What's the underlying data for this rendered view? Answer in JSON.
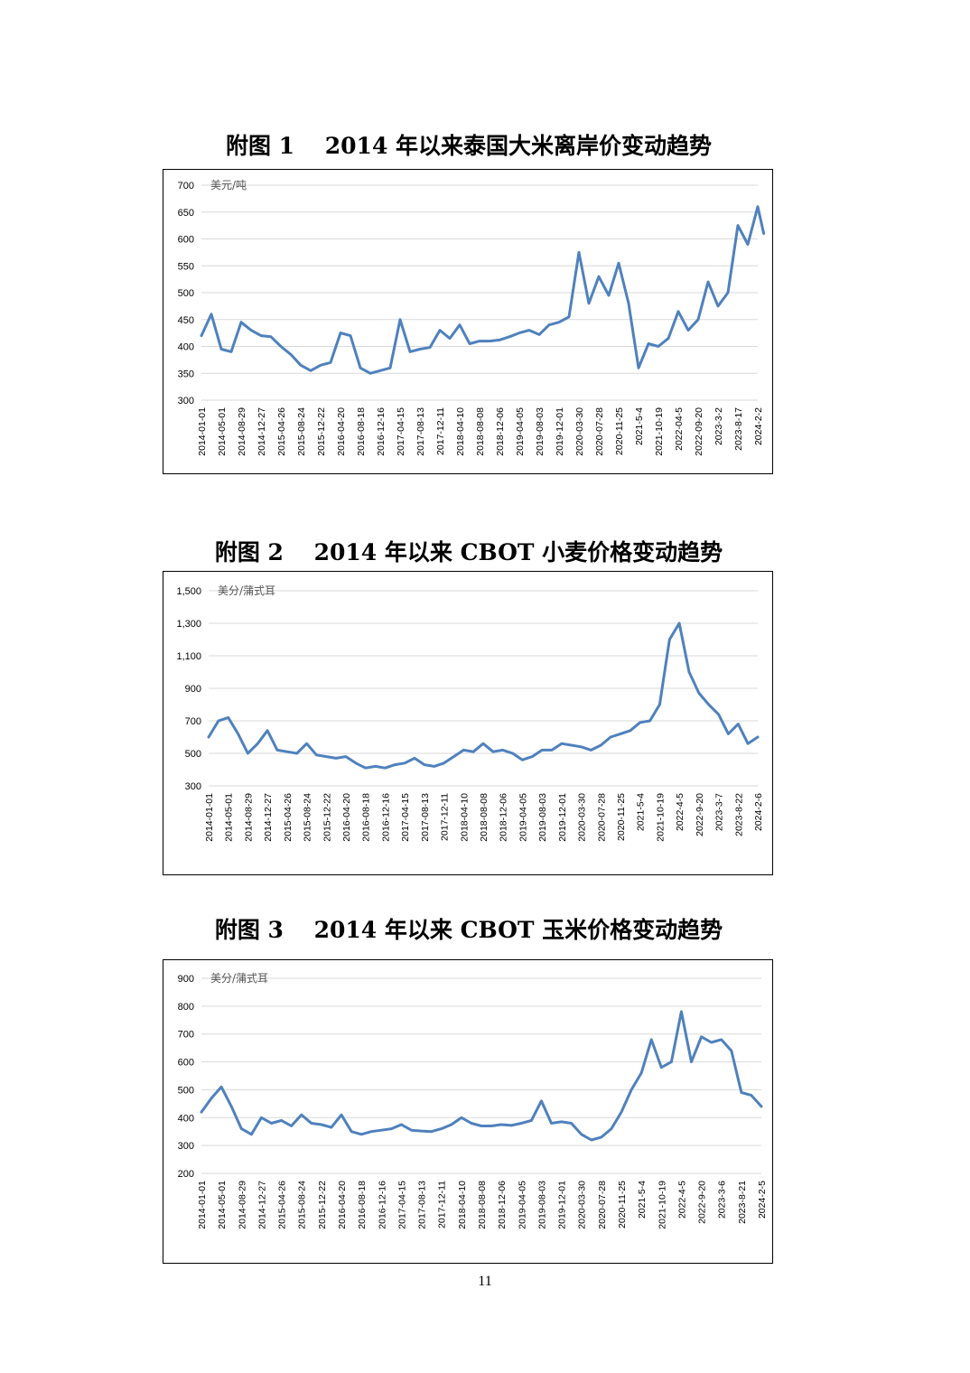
{
  "page_number": "11",
  "figures": [
    {
      "title": "附图 1　 2014 年以来泰国大米离岸价变动趋势",
      "unit": "美元/吨",
      "y_ticks": [
        "700",
        "650",
        "600",
        "550",
        "500",
        "450",
        "400",
        "350",
        "300"
      ],
      "x_ticks": [
        "2014-01-01",
        "2014-05-01",
        "2014-08-29",
        "2014-12-27",
        "2015-04-26",
        "2015-08-24",
        "2015-12-22",
        "2016-04-20",
        "2016-08-18",
        "2016-12-16",
        "2017-04-15",
        "2017-08-13",
        "2017-12-11",
        "2018-04-10",
        "2018-08-08",
        "2018-12-06",
        "2019-04-05",
        "2019-08-03",
        "2019-12-01",
        "2020-03-30",
        "2020-07-28",
        "2020-11-25",
        "2021-5-4",
        "2021-10-19",
        "2022-04-5",
        "2022-09-20",
        "2023-3-2",
        "2023-8-17",
        "2024-2-2"
      ]
    },
    {
      "title": "附图 2　 2014 年以来 CBOT 小麦价格变动趋势",
      "unit": "美分/蒲式耳",
      "y_ticks": [
        "1,500",
        "1,300",
        "1,100",
        "900",
        "700",
        "500",
        "300"
      ],
      "x_ticks": [
        "2014-01-01",
        "2014-05-01",
        "2014-08-29",
        "2014-12-27",
        "2015-04-26",
        "2015-08-24",
        "2015-12-22",
        "2016-04-20",
        "2016-08-18",
        "2016-12-16",
        "2017-04-15",
        "2017-08-13",
        "2017-12-11",
        "2018-04-10",
        "2018-08-08",
        "2018-12-06",
        "2019-04-05",
        "2019-08-03",
        "2019-12-01",
        "2020-03-30",
        "2020-07-28",
        "2020-11-25",
        "2021-5-4",
        "2021-10-19",
        "2022-4-5",
        "2022-9-20",
        "2023-3-7",
        "2023-8-22",
        "2024-2-6"
      ]
    },
    {
      "title": "附图 3　 2014 年以来 CBOT 玉米价格变动趋势",
      "unit": "美分/蒲式耳",
      "y_ticks": [
        "900",
        "800",
        "700",
        "600",
        "500",
        "400",
        "300",
        "200"
      ],
      "x_ticks": [
        "2014-01-01",
        "2014-05-01",
        "2014-08-29",
        "2014-12-27",
        "2015-04-26",
        "2015-08-24",
        "2015-12-22",
        "2016-04-20",
        "2016-08-18",
        "2016-12-16",
        "2017-04-15",
        "2017-08-13",
        "2017-12-11",
        "2018-04-10",
        "2018-08-08",
        "2018-12-06",
        "2019-04-05",
        "2019-08-03",
        "2019-12-01",
        "2020-03-30",
        "2020-07-28",
        "2020-11-25",
        "2021-5-4",
        "2021-10-19",
        "2022-4-5",
        "2022-9-20",
        "2023-3-6",
        "2023-8-21",
        "2024-2-5"
      ]
    }
  ],
  "chart_data": [
    {
      "type": "line",
      "title": "附图 1　 2014 年以来泰国大米离岸价变动趋势",
      "ylabel": "美元/吨",
      "ylim": [
        300,
        700
      ],
      "grid": true,
      "line_color": "#4f81bd",
      "x": [
        0,
        0.5,
        1,
        1.5,
        2,
        2.5,
        3,
        3.5,
        4,
        4.5,
        5,
        5.5,
        6,
        6.5,
        7,
        7.5,
        8,
        8.5,
        9,
        9.5,
        10,
        10.5,
        11,
        11.5,
        12,
        12.5,
        13,
        13.5,
        14,
        14.5,
        15,
        15.5,
        16,
        16.5,
        17,
        17.5,
        18,
        18.5,
        19,
        19.5,
        20,
        20.5,
        21,
        21.5,
        22,
        22.5,
        23,
        23.5,
        24,
        24.5,
        25,
        25.5,
        26,
        26.5,
        27,
        27.5,
        28,
        28.3
      ],
      "x_dates": [
        "2014-01-01",
        "2014-03-01",
        "2014-05-01",
        "2014-06-30",
        "2014-08-29",
        "2014-10-28",
        "2014-12-27",
        "2015-02-25",
        "2015-04-26",
        "2015-06-25",
        "2015-08-24",
        "2015-10-23",
        "2015-12-22",
        "2016-02-20",
        "2016-04-20",
        "2016-06-19",
        "2016-08-18",
        "2016-10-17",
        "2016-12-16",
        "2017-02-14",
        "2017-04-15",
        "2017-06-14",
        "2017-08-13",
        "2017-10-12",
        "2017-12-11",
        "2018-02-09",
        "2018-04-10",
        "2018-06-09",
        "2018-08-08",
        "2018-10-07",
        "2018-12-06",
        "2019-02-04",
        "2019-04-05",
        "2019-06-04",
        "2019-08-03",
        "2019-10-02",
        "2019-12-01",
        "2020-01-30",
        "2020-03-30",
        "2020-05-29",
        "2020-07-28",
        "2020-09-26",
        "2020-11-25",
        "2021-02-14",
        "2021-05-04",
        "2021-07-27",
        "2021-10-19",
        "2022-01-10",
        "2022-04-05",
        "2022-06-27",
        "2022-09-20",
        "2022-12-10",
        "2023-03-02",
        "2023-05-25",
        "2023-08-17",
        "2023-11-09",
        "2024-02-02",
        "2024-03-02"
      ],
      "values": [
        420,
        460,
        395,
        390,
        445,
        430,
        420,
        418,
        400,
        385,
        365,
        355,
        365,
        370,
        425,
        420,
        360,
        350,
        355,
        360,
        450,
        390,
        395,
        398,
        430,
        415,
        440,
        405,
        410,
        410,
        412,
        418,
        425,
        430,
        422,
        440,
        445,
        455,
        575,
        480,
        530,
        495,
        555,
        480,
        360,
        405,
        400,
        415,
        465,
        430,
        450,
        520,
        475,
        500,
        625,
        590,
        660,
        610
      ],
      "series": [
        {
          "values_ref": "values"
        }
      ]
    },
    {
      "type": "line",
      "title": "附图 2　 2014 年以来 CBOT 小麦价格变动趋势",
      "ylabel": "美分/蒲式耳",
      "ylim": [
        300,
        1500
      ],
      "grid": true,
      "line_color": "#4f81bd",
      "x": [
        0,
        0.5,
        1,
        1.5,
        2,
        2.5,
        3,
        3.5,
        4,
        4.5,
        5,
        5.5,
        6,
        6.5,
        7,
        7.5,
        8,
        8.5,
        9,
        9.5,
        10,
        10.5,
        11,
        11.5,
        12,
        12.5,
        13,
        13.5,
        14,
        14.5,
        15,
        15.5,
        16,
        16.5,
        17,
        17.5,
        18,
        18.5,
        19,
        19.5,
        20,
        20.5,
        21,
        21.5,
        22,
        22.5,
        23,
        23.5,
        24,
        24.5,
        25,
        25.5,
        26,
        26.5,
        27,
        27.5,
        28
      ],
      "x_dates": [
        "2014-01-01",
        "2014-03-01",
        "2014-05-01",
        "2014-06-30",
        "2014-08-29",
        "2014-10-28",
        "2014-12-27",
        "2015-02-25",
        "2015-04-26",
        "2015-06-25",
        "2015-08-24",
        "2015-10-23",
        "2015-12-22",
        "2016-02-20",
        "2016-04-20",
        "2016-06-19",
        "2016-08-18",
        "2016-10-17",
        "2016-12-16",
        "2017-02-14",
        "2017-04-15",
        "2017-06-14",
        "2017-08-13",
        "2017-10-12",
        "2017-12-11",
        "2018-02-09",
        "2018-04-10",
        "2018-06-09",
        "2018-08-08",
        "2018-10-07",
        "2018-12-06",
        "2019-02-04",
        "2019-04-05",
        "2019-06-04",
        "2019-08-03",
        "2019-10-02",
        "2019-12-01",
        "2020-01-30",
        "2020-03-30",
        "2020-05-29",
        "2020-07-28",
        "2020-09-26",
        "2020-11-25",
        "2021-02-14",
        "2021-05-04",
        "2021-07-27",
        "2021-10-19",
        "2022-01-10",
        "2022-04-05",
        "2022-06-27",
        "2022-09-20",
        "2022-12-10",
        "2023-03-07",
        "2023-06-01",
        "2023-08-22",
        "2023-11-14",
        "2024-02-06"
      ],
      "values": [
        600,
        700,
        720,
        620,
        500,
        560,
        640,
        520,
        510,
        500,
        560,
        490,
        480,
        470,
        480,
        440,
        410,
        420,
        410,
        430,
        440,
        470,
        430,
        420,
        440,
        480,
        520,
        510,
        560,
        510,
        520,
        500,
        460,
        480,
        520,
        520,
        560,
        550,
        540,
        520,
        550,
        600,
        620,
        640,
        690,
        700,
        800,
        1200,
        1300,
        1000,
        870,
        800,
        740,
        620,
        680,
        560,
        600
      ]
    },
    {
      "type": "line",
      "title": "附图 3　 2014 年以来 CBOT 玉米价格变动趋势",
      "ylabel": "美分/蒲式耳",
      "ylim": [
        200,
        900
      ],
      "grid": true,
      "line_color": "#4f81bd",
      "x": [
        0,
        0.5,
        1,
        1.5,
        2,
        2.5,
        3,
        3.5,
        4,
        4.5,
        5,
        5.5,
        6,
        6.5,
        7,
        7.5,
        8,
        8.5,
        9,
        9.5,
        10,
        10.5,
        11,
        11.5,
        12,
        12.5,
        13,
        13.5,
        14,
        14.5,
        15,
        15.5,
        16,
        16.5,
        17,
        17.5,
        18,
        18.5,
        19,
        19.5,
        20,
        20.5,
        21,
        21.5,
        22,
        22.5,
        23,
        23.5,
        24,
        24.5,
        25,
        25.5,
        26,
        26.5,
        27,
        27.5,
        28
      ],
      "x_dates": [
        "2014-01-01",
        "2014-03-01",
        "2014-05-01",
        "2014-06-30",
        "2014-08-29",
        "2014-10-28",
        "2014-12-27",
        "2015-02-25",
        "2015-04-26",
        "2015-06-25",
        "2015-08-24",
        "2015-10-23",
        "2015-12-22",
        "2016-02-20",
        "2016-04-20",
        "2016-06-19",
        "2016-08-18",
        "2016-10-17",
        "2016-12-16",
        "2017-02-14",
        "2017-04-15",
        "2017-06-14",
        "2017-08-13",
        "2017-10-12",
        "2017-12-11",
        "2018-02-09",
        "2018-04-10",
        "2018-06-09",
        "2018-08-08",
        "2018-10-07",
        "2018-12-06",
        "2019-02-04",
        "2019-04-05",
        "2019-06-04",
        "2019-08-03",
        "2019-10-02",
        "2019-12-01",
        "2020-01-30",
        "2020-03-30",
        "2020-05-29",
        "2020-07-28",
        "2020-09-26",
        "2020-11-25",
        "2021-02-14",
        "2021-05-04",
        "2021-07-27",
        "2021-10-19",
        "2022-01-10",
        "2022-04-05",
        "2022-06-27",
        "2022-09-20",
        "2022-12-10",
        "2023-03-06",
        "2023-05-31",
        "2023-08-21",
        "2023-11-13",
        "2024-02-05"
      ],
      "values": [
        420,
        470,
        510,
        440,
        360,
        340,
        400,
        380,
        390,
        370,
        410,
        380,
        375,
        365,
        410,
        350,
        340,
        350,
        355,
        360,
        375,
        355,
        352,
        350,
        360,
        375,
        400,
        380,
        370,
        370,
        375,
        372,
        380,
        390,
        460,
        380,
        385,
        380,
        340,
        320,
        330,
        360,
        420,
        500,
        560,
        680,
        580,
        600,
        780,
        600,
        690,
        670,
        680,
        640,
        490,
        480,
        440
      ]
    }
  ]
}
